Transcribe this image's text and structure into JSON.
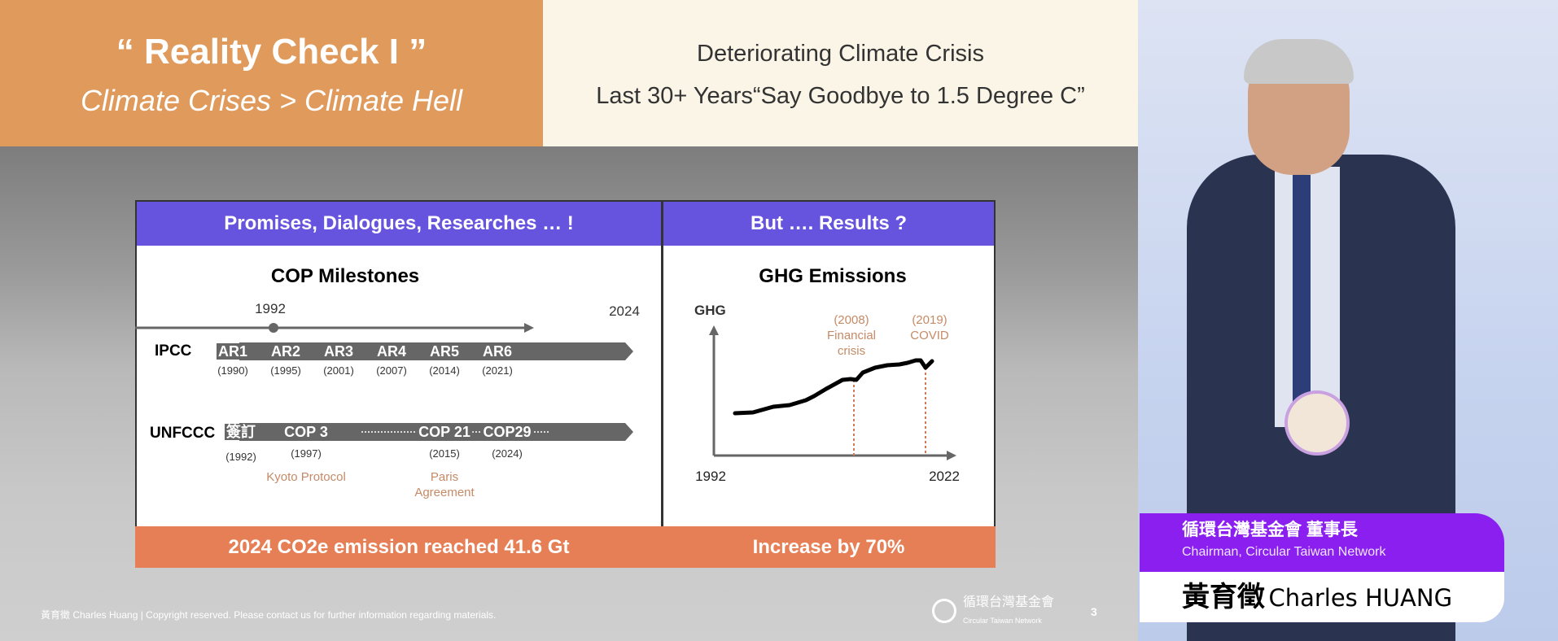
{
  "header": {
    "title": "“ Reality Check I ”",
    "subtitle": "Climate Crises > Climate Hell",
    "right_line1": "Deteriorating Climate Crisis",
    "right_line2": "Last 30+ Years“Say Goodbye to 1.5 Degree C”"
  },
  "left_panel": {
    "header": "Promises, Dialogues, Researches … !",
    "title": "COP Milestones",
    "start_year": "1992",
    "end_year": "2024",
    "ipcc_label": "IPCC",
    "ipcc": [
      {
        "name": "AR1",
        "year": "(1990)"
      },
      {
        "name": "AR2",
        "year": "(1995)"
      },
      {
        "name": "AR3",
        "year": "(2001)"
      },
      {
        "name": "AR4",
        "year": "(2007)"
      },
      {
        "name": "AR5",
        "year": "(2014)"
      },
      {
        "name": "AR6",
        "year": "(2021)"
      }
    ],
    "unfccc_label": "UNFCCC",
    "unfccc": [
      {
        "name": "簽訂",
        "year": "(1992)",
        "note": ""
      },
      {
        "name": "COP 3",
        "year": "(1997)",
        "note": "Kyoto Protocol"
      },
      {
        "name": "COP 21",
        "year": "(2015)",
        "note": "Paris Agreement"
      },
      {
        "name": "COP29",
        "year": "(2024)",
        "note": ""
      }
    ],
    "footer": "2024 CO2e emission reached 41.6 Gt"
  },
  "right_panel": {
    "header": "But …. Results  ?",
    "title": "GHG Emissions",
    "ylabel": "GHG",
    "x_start": "1992",
    "x_end": "2022",
    "annotations": [
      {
        "year": "(2008)",
        "text": "Financial crisis"
      },
      {
        "year": "(2019)",
        "text": "COVID"
      }
    ],
    "footer": "Increase by 70%"
  },
  "slide_footer": {
    "copyright": "黃育徵 Charles Huang | Copyright reserved. Please contact us for further information regarding materials.",
    "logo_zh": "循環台灣基金會",
    "logo_en": "Circular Taiwan Network",
    "page": "3"
  },
  "name_tag": {
    "title_zh": "循環台灣基金會 董事長",
    "title_en": "Chairman, Circular Taiwan Network",
    "name_zh": "黃育徵",
    "name_en": "Charles HUANG"
  },
  "colors": {
    "header_orange": "#df9a5c",
    "panel_purple": "#6754de",
    "panel_orange": "#e67f55",
    "tag_purple": "#8a1ff0",
    "annotation": "#c58a66"
  }
}
